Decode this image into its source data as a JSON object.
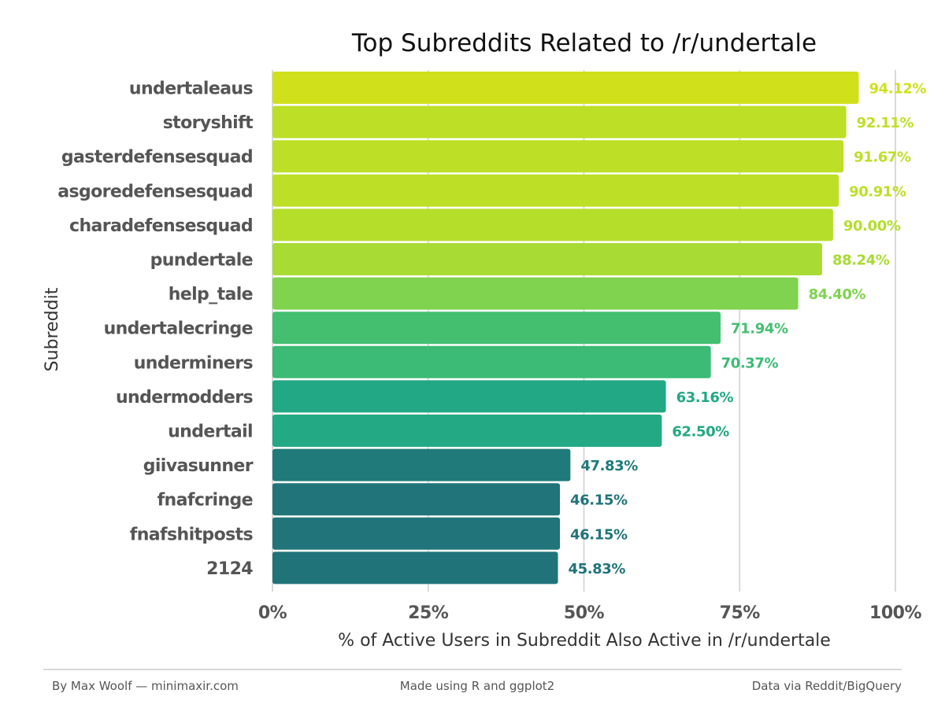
{
  "chart_data": {
    "type": "bar",
    "orientation": "horizontal",
    "title": "Top Subreddits Related to /r/undertale",
    "xlabel": "% of Active Users in Subreddit Also Active in /r/undertale",
    "ylabel": "Subreddit",
    "xlim": [
      0,
      100
    ],
    "xticks": [
      "0%",
      "25%",
      "50%",
      "75%",
      "100%"
    ],
    "grid": true,
    "legend": "none",
    "categories": [
      "undertaleaus",
      "storyshift",
      "gasterdefensesquad",
      "asgoredefensesquad",
      "charadefensesquad",
      "pundertale",
      "help_tale",
      "undertalecringe",
      "underminers",
      "undermodders",
      "undertail",
      "giivasunner",
      "fnafcringe",
      "fnafshitposts",
      "2124"
    ],
    "values": [
      94.12,
      92.11,
      91.67,
      90.91,
      90.0,
      88.24,
      84.4,
      71.94,
      70.37,
      63.16,
      62.5,
      47.83,
      46.15,
      46.15,
      45.83
    ],
    "value_labels": [
      "94.12%",
      "92.11%",
      "91.67%",
      "90.91%",
      "90.00%",
      "88.24%",
      "84.40%",
      "71.94%",
      "70.37%",
      "63.16%",
      "62.50%",
      "47.83%",
      "46.15%",
      "46.15%",
      "45.83%"
    ],
    "colors": [
      "#d0e11c",
      "#bddf26",
      "#bddf26",
      "#bddf26",
      "#b5de2b",
      "#a8db34",
      "#7fd34e",
      "#44bf70",
      "#3bbb75",
      "#22a884",
      "#23a983",
      "#1f7a79",
      "#21757a",
      "#21757a",
      "#21737a"
    ]
  },
  "footer": {
    "left": "By Max Woolf — minimaxir.com",
    "center": "Made using R and ggplot2",
    "right": "Data via Reddit/BigQuery"
  }
}
